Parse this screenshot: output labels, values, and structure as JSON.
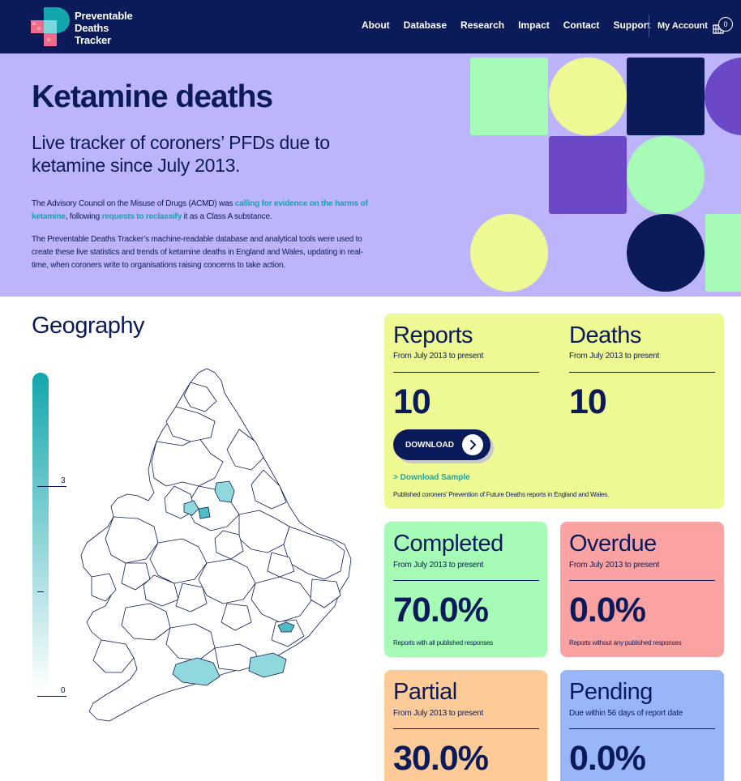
{
  "nav": {
    "logo_lines": [
      "Preventable",
      "Deaths",
      "Tracker"
    ],
    "links": [
      "About",
      "Database",
      "Research",
      "Impact",
      "Contact",
      "Support"
    ],
    "account": "My Account",
    "basket_count": "0"
  },
  "hero": {
    "title": "Ketamine deaths",
    "subtitle": "Live tracker of coroners’ PFDs due to ketamine since July 2013.",
    "p1_a": "The Advisory Council on the Misuse of Drugs (ACMD) was ",
    "p1_link1": "calling for evidence on the harms of ketamine",
    "p1_b": ", following ",
    "p1_link2": "requests to reclassify",
    "p1_c": " it as a Class A substance.",
    "p2": "The Preventable Deaths Tracker’s machine-readable database and analytical tools were used to create these live statistics and trends of ketamine deaths in England and Wales, updating in real-time, when coroners write to organisations raising concerns to take action."
  },
  "geography": {
    "title": "Geography",
    "legend_max": "3",
    "legend_min": "0"
  },
  "cards": {
    "reports": {
      "title": "Reports",
      "sub": "From July 2013 to present",
      "value": "10"
    },
    "deaths": {
      "title": "Deaths",
      "sub": "From July 2013 to present",
      "value": "10"
    },
    "download_label": "DOWNLOAD",
    "download_sample": "> Download Sample",
    "reports_note": "Published coroners' Prevention of Future Deaths reports in England and Wales.",
    "completed": {
      "title": "Completed",
      "sub": "From July 2013 to present",
      "value": "70.0%",
      "foot": "Reports with all published responses"
    },
    "overdue": {
      "title": "Overdue",
      "sub": "From July 2013 to present",
      "value": "0.0%",
      "foot": "Reports without any published responses"
    },
    "partial": {
      "title": "Partial",
      "sub": "From July 2013 to present",
      "value": "30.0%"
    },
    "pending": {
      "title": "Pending",
      "sub": "Due within 56 days of report date",
      "value": "0.0%"
    }
  },
  "colors": {
    "navy": "#0b1b5a",
    "lavender": "#bcb5fb",
    "teal": "#13a6ad",
    "yellow": "#eef994",
    "green": "#a6fbb6",
    "red": "#fba3a3",
    "orange": "#fccb98",
    "blue": "#9ab6fb",
    "purple": "#6b48c8"
  }
}
